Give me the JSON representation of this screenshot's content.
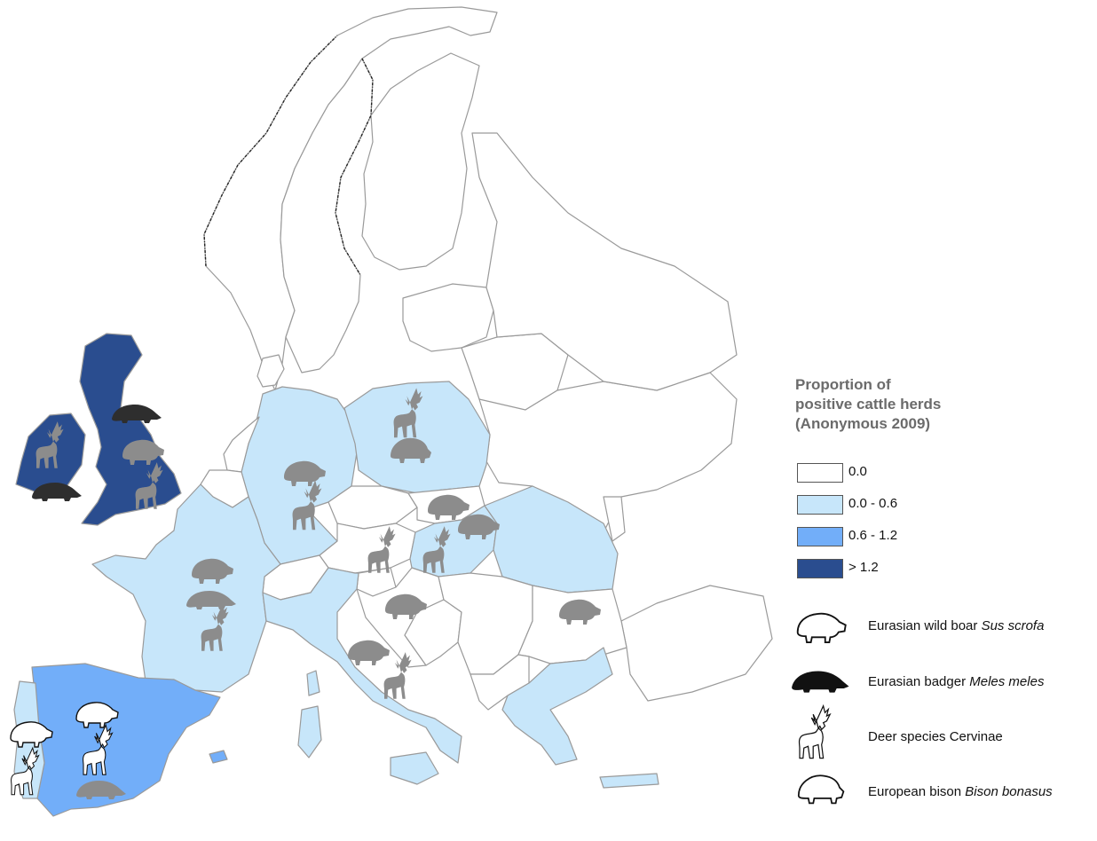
{
  "legend": {
    "title_lines": [
      "Proportion of",
      "positive cattle herds",
      "(Anonymous 2009)"
    ],
    "scale": [
      {
        "label": "0.0",
        "color": "#ffffff"
      },
      {
        "label": "0.0 - 0.6",
        "color": "#c7e6fa"
      },
      {
        "label": "0.6 - 1.2",
        "color": "#72aef9"
      },
      {
        "label": "> 1.2",
        "color": "#2a4d8f"
      }
    ],
    "species": [
      {
        "common": "Eurasian wild boar",
        "latin": "Sus scrofa",
        "icon": "boar-icon"
      },
      {
        "common": "Eurasian badger",
        "latin": "Meles meles",
        "icon": "badger-icon"
      },
      {
        "common": "Deer species",
        "latin": "Cervinae",
        "icon": "deer-icon",
        "latin_italic": false
      },
      {
        "common": "European bison",
        "latin": "Bison bonasus",
        "icon": "bison-icon"
      }
    ]
  },
  "colors": {
    "light": "#c7e6fa",
    "medium": "#72aef9",
    "dark": "#2a4d8f",
    "icon_gray": "#8c8c8c",
    "icon_black": "#2e2e2e"
  },
  "regions": [
    {
      "name": "United Kingdom",
      "class": "> 1.2",
      "species": [
        "boar-icon",
        "deer-icon",
        "badger-icon"
      ]
    },
    {
      "name": "Ireland",
      "class": "> 1.2",
      "species": [
        "deer-icon",
        "badger-icon"
      ]
    },
    {
      "name": "Spain",
      "class": "0.6 - 1.2",
      "species": [
        "boar-icon",
        "deer-icon",
        "badger-icon"
      ]
    },
    {
      "name": "Portugal",
      "class": "0.0 - 0.6",
      "species": [
        "boar-icon",
        "deer-icon"
      ]
    },
    {
      "name": "France",
      "class": "0.0 - 0.6",
      "species": [
        "boar-icon",
        "badger-icon",
        "deer-icon"
      ]
    },
    {
      "name": "Germany",
      "class": "0.0 - 0.6",
      "species": [
        "boar-icon",
        "deer-icon"
      ]
    },
    {
      "name": "Poland",
      "class": "0.0 - 0.6",
      "species": [
        "deer-icon",
        "bison-icon"
      ]
    },
    {
      "name": "Hungary",
      "class": "0.0 - 0.6",
      "species": [
        "boar-icon",
        "deer-icon"
      ]
    },
    {
      "name": "Romania",
      "class": "0.0 - 0.6",
      "species": []
    },
    {
      "name": "Italy",
      "class": "0.0 - 0.6",
      "species": [
        "boar-icon",
        "deer-icon"
      ]
    },
    {
      "name": "Greece",
      "class": "0.0 - 0.6",
      "species": []
    },
    {
      "name": "Austria",
      "class": "0.0",
      "species": [
        "deer-icon"
      ]
    },
    {
      "name": "Croatia",
      "class": "0.0",
      "species": [
        "boar-icon"
      ]
    },
    {
      "name": "Bulgaria",
      "class": "0.0",
      "species": [
        "boar-icon"
      ]
    },
    {
      "name": "Slovakia",
      "class": "0.0",
      "species": [
        "boar-icon"
      ]
    }
  ]
}
